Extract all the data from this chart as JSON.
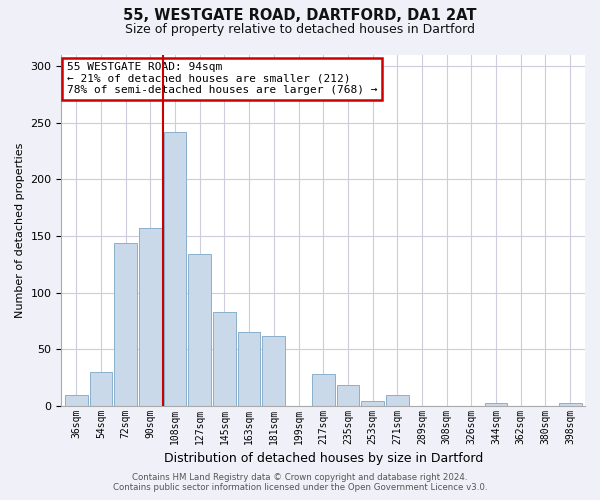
{
  "title_line1": "55, WESTGATE ROAD, DARTFORD, DA1 2AT",
  "title_line2": "Size of property relative to detached houses in Dartford",
  "xlabel": "Distribution of detached houses by size in Dartford",
  "ylabel": "Number of detached properties",
  "bin_labels": [
    "36sqm",
    "54sqm",
    "72sqm",
    "90sqm",
    "108sqm",
    "127sqm",
    "145sqm",
    "163sqm",
    "181sqm",
    "199sqm",
    "217sqm",
    "235sqm",
    "253sqm",
    "271sqm",
    "289sqm",
    "308sqm",
    "326sqm",
    "344sqm",
    "362sqm",
    "380sqm",
    "398sqm"
  ],
  "bar_values": [
    9,
    30,
    144,
    157,
    242,
    134,
    83,
    65,
    62,
    0,
    28,
    18,
    4,
    9,
    0,
    0,
    0,
    2,
    0,
    0,
    2
  ],
  "bar_color": "#c9d9ea",
  "bar_edge_color": "#8ab0cc",
  "annotation_box_text": "55 WESTGATE ROAD: 94sqm\n← 21% of detached houses are smaller (212)\n78% of semi-detached houses are larger (768) →",
  "annotation_box_edge_color": "#cc0000",
  "property_line_color": "#cc0000",
  "ylim": [
    0,
    310
  ],
  "yticks": [
    0,
    50,
    100,
    150,
    200,
    250,
    300
  ],
  "footer_line1": "Contains HM Land Registry data © Crown copyright and database right 2024.",
  "footer_line2": "Contains public sector information licensed under the Open Government Licence v3.0.",
  "background_color": "#f0f0f8",
  "plot_bg_color": "#ffffff",
  "grid_color": "#ccccdd"
}
